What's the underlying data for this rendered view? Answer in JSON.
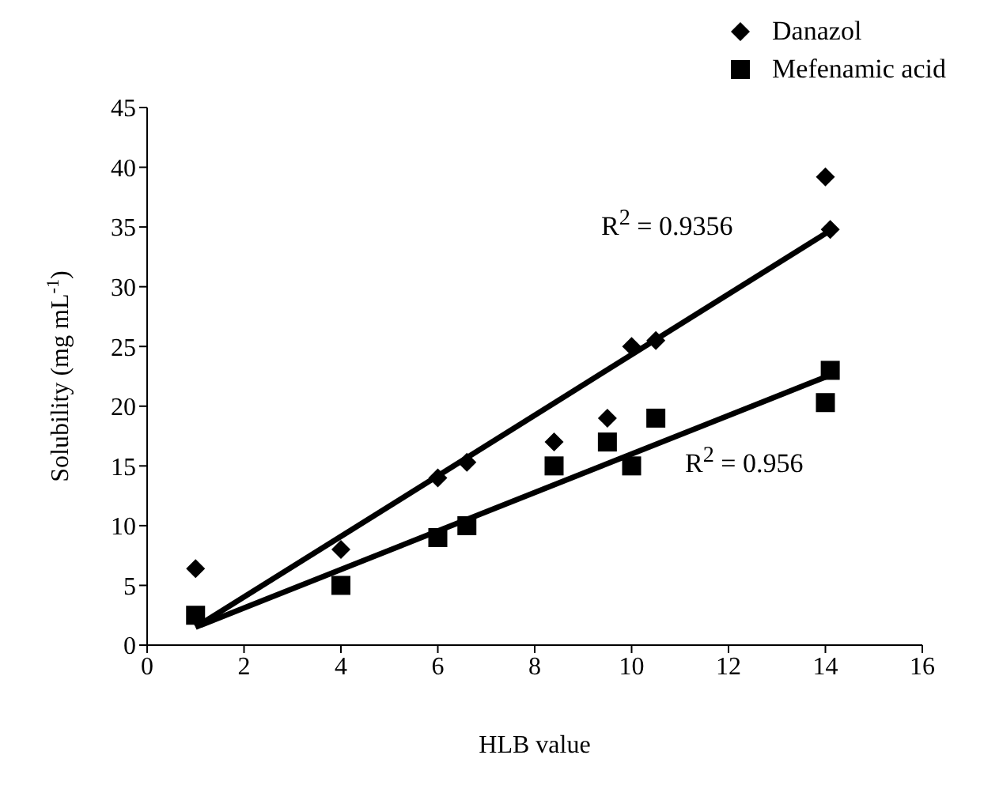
{
  "chart_data": {
    "type": "scatter",
    "xlabel": "HLB value",
    "ylabel": "Solubility (mg mL$^{-1}$)",
    "xlim": [
      0,
      16
    ],
    "xticks": [
      0,
      2,
      4,
      6,
      8,
      10,
      12,
      14,
      16
    ],
    "ylim": [
      0,
      45
    ],
    "yticks": [
      0,
      5,
      10,
      15,
      20,
      25,
      30,
      35,
      40,
      45
    ],
    "legend": "top right",
    "annotations": [
      "R$^{2}$ = 0.9356",
      "R$^{2}$ = 0.956"
    ],
    "series": [
      {
        "name": "Danazol",
        "color": "#000000",
        "marker": "diamond",
        "x": [
          1,
          4,
          6,
          6.6,
          8.4,
          9.5,
          10,
          10.5,
          14,
          14.1
        ],
        "values": [
          6.4,
          8,
          14,
          15.3,
          17,
          19,
          25,
          25.5,
          39.2,
          34.8
        ]
      },
      {
        "name": "Mefenamic acid",
        "color": "#000000",
        "marker": "square",
        "x": [
          1,
          4,
          6,
          6.6,
          8.4,
          9.5,
          10,
          10.5,
          14,
          14.1
        ],
        "values": [
          2.5,
          5,
          9,
          10,
          15,
          17,
          15,
          19,
          20.3,
          23
        ]
      },
      {
        "type": "line",
        "color": "#000000",
        "marker": "none",
        "line_style": "solid",
        "x": [
          1,
          14.1
        ],
        "values": [
          1.5,
          34.7
        ]
      },
      {
        "type": "line",
        "color": "#000000",
        "marker": "none",
        "line_style": "solid",
        "x": [
          1,
          14.1
        ],
        "values": [
          1.5,
          22.6
        ]
      }
    ]
  }
}
